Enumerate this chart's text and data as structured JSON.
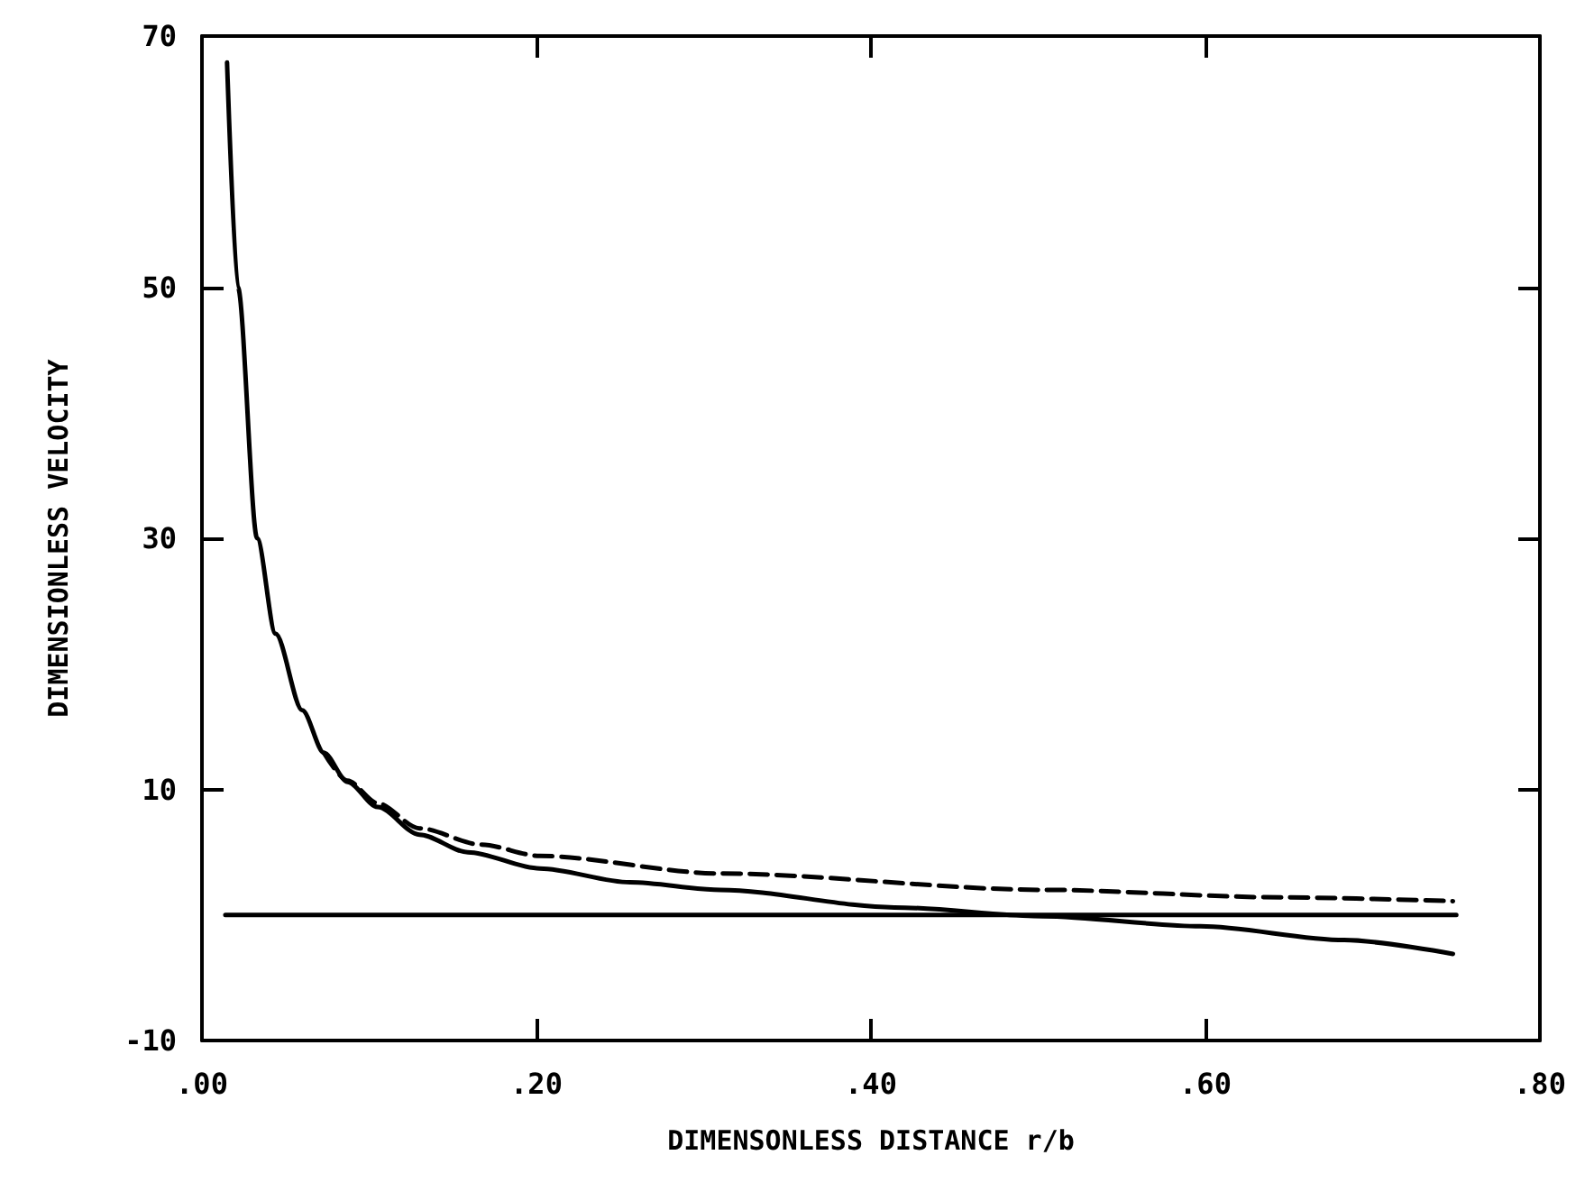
{
  "chart_data": {
    "type": "line",
    "xlabel": "DIMENSONLESS DISTANCE r/b",
    "ylabel": "DIMENSIONLESS VELOCITY",
    "xlim": [
      0,
      0.8
    ],
    "xticks": [
      {
        "value": 0,
        "label": ".00"
      },
      {
        "value": 0.2,
        "label": ".20"
      },
      {
        "value": 0.4,
        "label": ".40"
      },
      {
        "value": 0.6,
        "label": ".60"
      },
      {
        "value": 0.8,
        "label": ".80"
      }
    ],
    "ylim": [
      -10,
      70
    ],
    "yticks": [
      -10,
      10,
      30,
      50,
      70
    ],
    "grid": false,
    "marker": "none",
    "series": [
      {
        "color": "#000000",
        "line_style": "solid",
        "x": [
          0.015,
          0.0215,
          0.033,
          0.044,
          0.06,
          0.073,
          0.087,
          0.105,
          0.13,
          0.159,
          0.202,
          0.256,
          0.31,
          0.414,
          0.503,
          0.597,
          0.683,
          0.748
        ],
        "values": [
          67.9,
          50,
          30,
          22.4,
          16.3,
          12.9,
          10.6,
          8.6,
          6.4,
          5.0,
          3.7,
          2.6,
          2.0,
          0.6,
          -0.1,
          -0.9,
          -2.0,
          -3.1
        ]
      },
      {
        "color": "#000000",
        "line_style": "dashed",
        "x": [
          0.073,
          0.087,
          0.105,
          0.13,
          0.167,
          0.202,
          0.31,
          0.503,
          0.646,
          0.748
        ],
        "values": [
          12.9,
          10.7,
          8.9,
          6.9,
          5.6,
          4.7,
          3.3,
          2.0,
          1.4,
          1.1
        ]
      },
      {
        "color": "#000000",
        "line_style": "solid",
        "x": [
          0.014,
          0.75
        ],
        "values": [
          0,
          0
        ]
      }
    ]
  }
}
